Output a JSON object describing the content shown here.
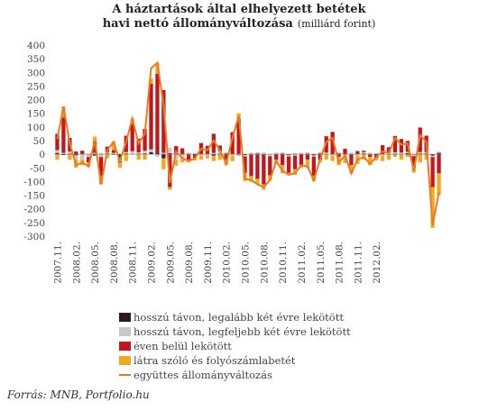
{
  "chart_data": {
    "type": "bar",
    "title_line1": "A háztartások által elhelyezett betétek",
    "title_line2_bold": "havi nettó állományváltozása",
    "title_line2_light": "(milliárd forint)",
    "ylim": [
      -300,
      400
    ],
    "yticks": [
      400,
      350,
      300,
      250,
      200,
      150,
      100,
      50,
      0,
      -50,
      -100,
      -150,
      -200,
      -250,
      -300
    ],
    "xtick_labels": [
      "2007.11.",
      "2008.02.",
      "2008.05.",
      "2008.08.",
      "2008.11.",
      "2009.02.",
      "2009.05.",
      "2009.08.",
      "2009.11.",
      "2010.02.",
      "2010.05.",
      "2010.08.",
      "2010.11.",
      "2011.02.",
      "2011.05.",
      "2011.08.",
      "2011.11.",
      "2012.02."
    ],
    "series": [
      {
        "name": "hosszú távon, legalább két évre lekötött",
        "color": "#2a1a1a",
        "values": [
          5,
          -3,
          2,
          -4,
          3,
          1,
          -5,
          2,
          3,
          -2,
          -20,
          3,
          1,
          2,
          3,
          8,
          5,
          -15,
          4,
          -2,
          2,
          1,
          -3,
          1,
          1,
          -5,
          2,
          3,
          1,
          -2,
          -3,
          1,
          3,
          1,
          -2,
          1,
          2,
          -3,
          2,
          1,
          2,
          -4,
          3,
          1,
          2,
          3,
          -2,
          1,
          2,
          3,
          1,
          -3,
          3,
          1,
          2,
          1,
          4,
          -2,
          3,
          3,
          -5,
          5
        ]
      },
      {
        "name": "hosszú távon, legfeljebb két évre lekötött",
        "color": "#c8c8c8",
        "values": [
          10,
          5,
          8,
          -15,
          -20,
          -10,
          5,
          -10,
          5,
          5,
          -5,
          5,
          10,
          5,
          10,
          10,
          -10,
          5,
          20,
          -20,
          -10,
          5,
          5,
          -5,
          -5,
          5,
          10,
          5,
          -5,
          -5,
          -5,
          5,
          5,
          5,
          -5,
          5,
          5,
          -5,
          -5,
          5,
          5,
          -5,
          5,
          5,
          -5,
          5,
          -5,
          5,
          -5,
          5,
          5,
          5,
          -5,
          5,
          5,
          5,
          5,
          -5,
          5,
          5,
          -5,
          5
        ]
      },
      {
        "name": "éven belül lekötött",
        "color": "#c4161c",
        "values": [
          60,
          130,
          50,
          10,
          10,
          -20,
          40,
          -70,
          20,
          10,
          -5,
          60,
          100,
          50,
          80,
          240,
          290,
          230,
          -120,
          30,
          20,
          -20,
          -10,
          40,
          30,
          70,
          20,
          -20,
          80,
          130,
          -60,
          -80,
          -90,
          -110,
          -70,
          -20,
          -40,
          -60,
          -50,
          -40,
          -20,
          -70,
          -20,
          60,
          80,
          -10,
          20,
          -40,
          10,
          5,
          -10,
          -10,
          30,
          20,
          60,
          50,
          40,
          -40,
          90,
          60,
          -110,
          -70
        ]
      },
      {
        "name": "látra szóló és folyószámlabetét",
        "color": "#f4a81d",
        "values": [
          -20,
          40,
          -20,
          -30,
          -20,
          -15,
          20,
          -30,
          -15,
          30,
          -20,
          -25,
          20,
          -20,
          -20,
          20,
          40,
          -40,
          -10,
          -20,
          -20,
          -10,
          -10,
          -15,
          -10,
          -20,
          -20,
          -20,
          -20,
          20,
          -30,
          -20,
          -20,
          -20,
          -20,
          -15,
          -30,
          -10,
          -20,
          -10,
          -30,
          -20,
          -10,
          -20,
          -20,
          -30,
          -25,
          -30,
          -30,
          -20,
          -30,
          -10,
          -20,
          -20,
          -10,
          -20,
          -10,
          -20,
          -30,
          -20,
          -150,
          -80
        ]
      },
      {
        "name": "együttes állományváltozás",
        "color": "#ec7a1e",
        "type": "line",
        "values": [
          55,
          175,
          40,
          -40,
          -30,
          -45,
          50,
          -110,
          15,
          45,
          -25,
          45,
          130,
          40,
          75,
          315,
          335,
          180,
          -105,
          10,
          -15,
          -25,
          -15,
          20,
          15,
          50,
          15,
          -35,
          60,
          140,
          -90,
          -95,
          -110,
          -120,
          -95,
          -25,
          -60,
          -75,
          -70,
          -40,
          -45,
          -95,
          -20,
          45,
          60,
          -30,
          -5,
          -70,
          -20,
          -10,
          -35,
          -10,
          10,
          5,
          60,
          35,
          40,
          -60,
          70,
          45,
          -260,
          -140
        ]
      }
    ],
    "legend_position": "bottom",
    "grid": false,
    "source": "Forrás: MNB, Portfolio.hu"
  }
}
